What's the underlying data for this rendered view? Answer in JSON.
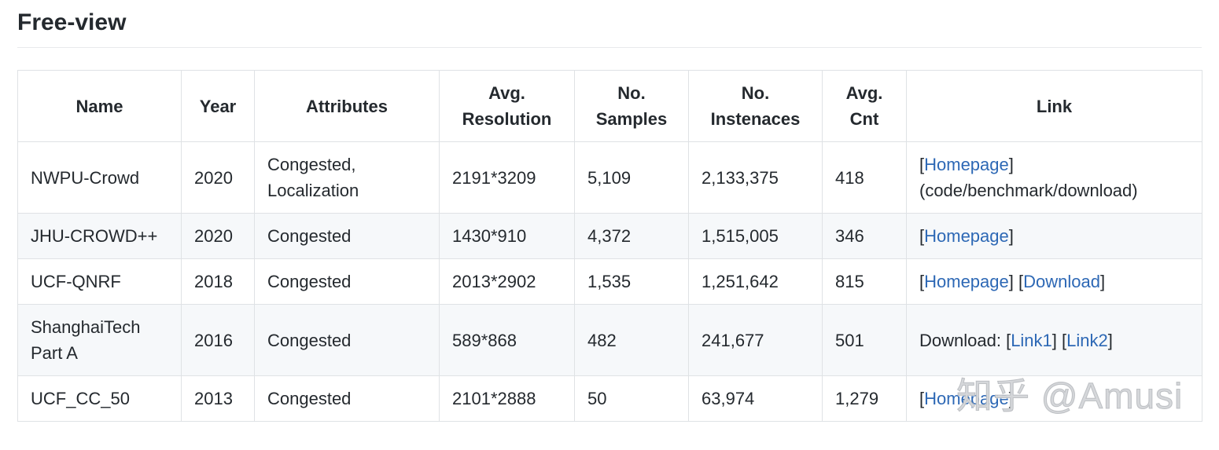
{
  "page": {
    "title": "Free-view"
  },
  "watermark": "知乎 @Amusi",
  "colors": {
    "link": "#2d68b5",
    "text": "#24292e",
    "row_stripe": "#f6f8fa",
    "border": "#dfe2e5"
  },
  "table": {
    "columns": [
      "Name",
      "Year",
      "Attributes",
      "Avg. Resolution",
      "No. Samples",
      "No. Instenaces",
      "Avg. Cnt",
      "Link"
    ],
    "rows": [
      {
        "name": "NWPU-Crowd",
        "year": "2020",
        "attributes": "Congested, Localization",
        "avg_resolution": "2191*3209",
        "no_samples": "5,109",
        "no_instances": "2,133,375",
        "avg_cnt": "418",
        "link_parts": [
          {
            "text": "[",
            "link": false
          },
          {
            "text": "Homepage",
            "link": true,
            "name": "nwpu-homepage-link"
          },
          {
            "text": "] (code/benchmark/download)",
            "link": false
          }
        ]
      },
      {
        "name": "JHU-CROWD++",
        "year": "2020",
        "attributes": "Congested",
        "avg_resolution": "1430*910",
        "no_samples": "4,372",
        "no_instances": "1,515,005",
        "avg_cnt": "346",
        "link_parts": [
          {
            "text": "[",
            "link": false
          },
          {
            "text": "Homepage",
            "link": true,
            "name": "jhu-homepage-link"
          },
          {
            "text": "]",
            "link": false
          }
        ]
      },
      {
        "name": "UCF-QNRF",
        "year": "2018",
        "attributes": "Congested",
        "avg_resolution": "2013*2902",
        "no_samples": "1,535",
        "no_instances": "1,251,642",
        "avg_cnt": "815",
        "link_parts": [
          {
            "text": "[",
            "link": false
          },
          {
            "text": "Homepage",
            "link": true,
            "name": "qnrf-homepage-link"
          },
          {
            "text": "] [",
            "link": false
          },
          {
            "text": "Download",
            "link": true,
            "name": "qnrf-download-link"
          },
          {
            "text": "]",
            "link": false
          }
        ]
      },
      {
        "name": "ShanghaiTech Part A",
        "year": "2016",
        "attributes": "Congested",
        "avg_resolution": "589*868",
        "no_samples": "482",
        "no_instances": "241,677",
        "avg_cnt": "501",
        "link_parts": [
          {
            "text": "Download: [",
            "link": false
          },
          {
            "text": "Link1",
            "link": true,
            "name": "shanghaitech-link1-link"
          },
          {
            "text": "] [",
            "link": false
          },
          {
            "text": "Link2",
            "link": true,
            "name": "shanghaitech-link2-link"
          },
          {
            "text": "]",
            "link": false
          }
        ]
      },
      {
        "name": "UCF_CC_50",
        "year": "2013",
        "attributes": "Congested",
        "avg_resolution": "2101*2888",
        "no_samples": "50",
        "no_instances": "63,974",
        "avg_cnt": "1,279",
        "link_parts": [
          {
            "text": "[",
            "link": false
          },
          {
            "text": "Homepage",
            "link": true,
            "name": "ucfcc50-homepage-link"
          },
          {
            "text": "]",
            "link": false
          }
        ]
      }
    ]
  }
}
